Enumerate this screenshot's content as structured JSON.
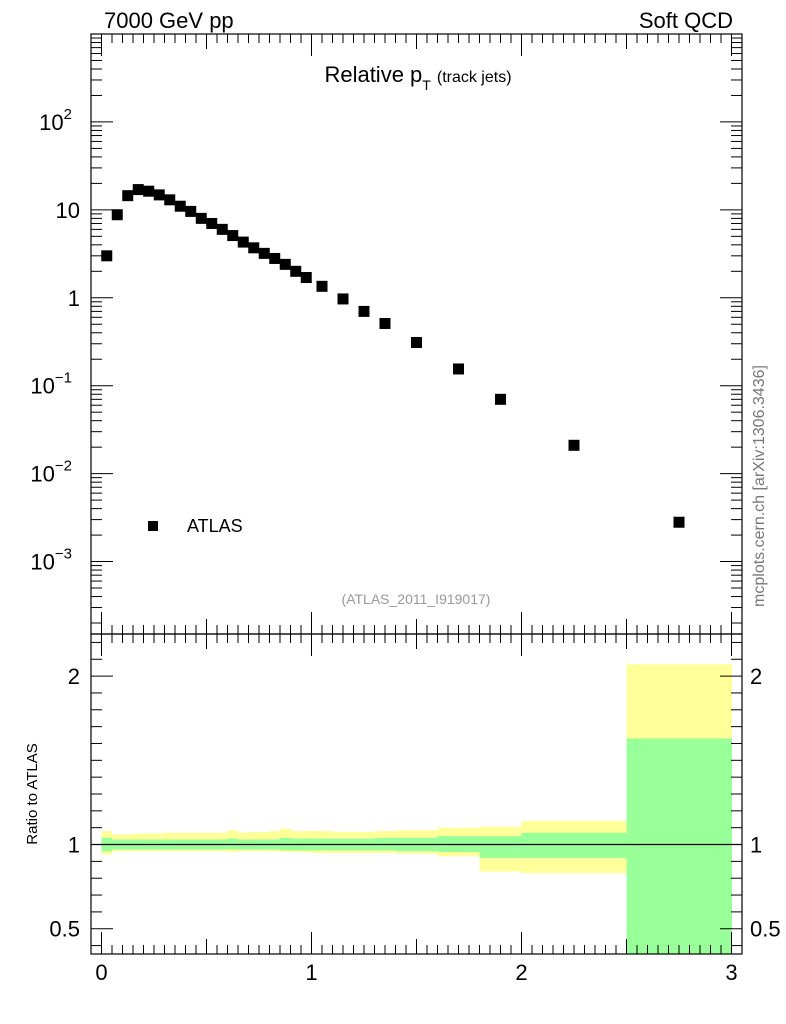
{
  "header": {
    "left": "7000 GeV pp",
    "right": "Soft QCD"
  },
  "side_label": "mcplots.cern.ch [arXiv:1306.3436]",
  "chart_data": [
    {
      "type": "scatter",
      "title_main": "Relative p",
      "title_sub": "T",
      "title_suffix": "(track jets)",
      "analysis_label": "(ATLAS_2011_I919017)",
      "xlim": [
        -0.05,
        3.05
      ],
      "ylim": [
        0.00015,
        1000
      ],
      "log_y": true,
      "y_tick_labels": [
        {
          "value": 100,
          "base": "10",
          "exp": "2"
        },
        {
          "value": 10,
          "base": "10",
          "exp": ""
        },
        {
          "value": 1,
          "base": "1",
          "exp": ""
        },
        {
          "value": 0.1,
          "base": "10",
          "exp": "−1"
        },
        {
          "value": 0.01,
          "base": "10",
          "exp": "−2"
        },
        {
          "value": 0.001,
          "base": "10",
          "exp": "−3"
        }
      ],
      "legend": {
        "label": "ATLAS",
        "position": "lower-left"
      },
      "series": [
        {
          "name": "ATLAS",
          "color": "#000000",
          "x": [
            0.025,
            0.075,
            0.125,
            0.175,
            0.225,
            0.275,
            0.325,
            0.375,
            0.425,
            0.475,
            0.525,
            0.575,
            0.625,
            0.675,
            0.725,
            0.775,
            0.825,
            0.875,
            0.925,
            0.975,
            1.05,
            1.15,
            1.25,
            1.35,
            1.5,
            1.7,
            1.9,
            2.25,
            2.75
          ],
          "y": [
            3.0,
            8.8,
            14.5,
            17.0,
            16.3,
            14.8,
            13.0,
            11.0,
            9.6,
            8.0,
            7.0,
            6.0,
            5.1,
            4.3,
            3.7,
            3.2,
            2.8,
            2.4,
            2.0,
            1.7,
            1.35,
            0.97,
            0.7,
            0.51,
            0.31,
            0.155,
            0.07,
            0.021,
            0.0028
          ]
        }
      ]
    },
    {
      "type": "area",
      "ylabel": "Ratio to ATLAS",
      "xlim": [
        -0.05,
        3.05
      ],
      "ylim": [
        0.35,
        2.25
      ],
      "x_ticks": [
        0,
        1,
        2,
        3
      ],
      "y_ticks": [
        0.5,
        1,
        2
      ],
      "reference_line": 1,
      "band_colors": {
        "inner": "#99ff99",
        "outer": "#ffff99"
      },
      "bins": [
        {
          "lo": 0.0,
          "hi": 0.05,
          "inner": [
            0.96,
            1.04
          ],
          "outer": [
            0.94,
            1.08
          ]
        },
        {
          "lo": 0.05,
          "hi": 0.1,
          "inner": [
            0.97,
            1.03
          ],
          "outer": [
            0.96,
            1.06
          ]
        },
        {
          "lo": 0.1,
          "hi": 0.15,
          "inner": [
            0.97,
            1.03
          ],
          "outer": [
            0.96,
            1.06
          ]
        },
        {
          "lo": 0.15,
          "hi": 0.2,
          "inner": [
            0.97,
            1.03
          ],
          "outer": [
            0.96,
            1.065
          ]
        },
        {
          "lo": 0.2,
          "hi": 0.25,
          "inner": [
            0.97,
            1.03
          ],
          "outer": [
            0.96,
            1.065
          ]
        },
        {
          "lo": 0.25,
          "hi": 0.3,
          "inner": [
            0.97,
            1.03
          ],
          "outer": [
            0.96,
            1.065
          ]
        },
        {
          "lo": 0.3,
          "hi": 0.35,
          "inner": [
            0.97,
            1.03
          ],
          "outer": [
            0.96,
            1.07
          ]
        },
        {
          "lo": 0.35,
          "hi": 0.4,
          "inner": [
            0.97,
            1.03
          ],
          "outer": [
            0.96,
            1.07
          ]
        },
        {
          "lo": 0.4,
          "hi": 0.45,
          "inner": [
            0.97,
            1.03
          ],
          "outer": [
            0.96,
            1.07
          ]
        },
        {
          "lo": 0.45,
          "hi": 0.5,
          "inner": [
            0.97,
            1.03
          ],
          "outer": [
            0.96,
            1.07
          ]
        },
        {
          "lo": 0.5,
          "hi": 0.55,
          "inner": [
            0.97,
            1.03
          ],
          "outer": [
            0.96,
            1.07
          ]
        },
        {
          "lo": 0.55,
          "hi": 0.6,
          "inner": [
            0.97,
            1.03
          ],
          "outer": [
            0.96,
            1.07
          ]
        },
        {
          "lo": 0.6,
          "hi": 0.65,
          "inner": [
            0.97,
            1.035
          ],
          "outer": [
            0.955,
            1.085
          ]
        },
        {
          "lo": 0.65,
          "hi": 0.7,
          "inner": [
            0.97,
            1.03
          ],
          "outer": [
            0.96,
            1.07
          ]
        },
        {
          "lo": 0.7,
          "hi": 0.75,
          "inner": [
            0.97,
            1.03
          ],
          "outer": [
            0.96,
            1.075
          ]
        },
        {
          "lo": 0.75,
          "hi": 0.8,
          "inner": [
            0.97,
            1.03
          ],
          "outer": [
            0.96,
            1.075
          ]
        },
        {
          "lo": 0.8,
          "hi": 0.85,
          "inner": [
            0.97,
            1.03
          ],
          "outer": [
            0.96,
            1.08
          ]
        },
        {
          "lo": 0.85,
          "hi": 0.9,
          "inner": [
            0.965,
            1.04
          ],
          "outer": [
            0.955,
            1.095
          ]
        },
        {
          "lo": 0.9,
          "hi": 0.95,
          "inner": [
            0.965,
            1.035
          ],
          "outer": [
            0.955,
            1.08
          ]
        },
        {
          "lo": 0.95,
          "hi": 1.0,
          "inner": [
            0.965,
            1.035
          ],
          "outer": [
            0.955,
            1.08
          ]
        },
        {
          "lo": 1.0,
          "hi": 1.1,
          "inner": [
            0.965,
            1.035
          ],
          "outer": [
            0.95,
            1.08
          ]
        },
        {
          "lo": 1.1,
          "hi": 1.2,
          "inner": [
            0.965,
            1.035
          ],
          "outer": [
            0.95,
            1.075
          ]
        },
        {
          "lo": 1.2,
          "hi": 1.3,
          "inner": [
            0.965,
            1.035
          ],
          "outer": [
            0.95,
            1.075
          ]
        },
        {
          "lo": 1.3,
          "hi": 1.4,
          "inner": [
            0.965,
            1.04
          ],
          "outer": [
            0.95,
            1.08
          ]
        },
        {
          "lo": 1.4,
          "hi": 1.6,
          "inner": [
            0.96,
            1.04
          ],
          "outer": [
            0.945,
            1.085
          ]
        },
        {
          "lo": 1.6,
          "hi": 1.8,
          "inner": [
            0.955,
            1.05
          ],
          "outer": [
            0.93,
            1.1
          ]
        },
        {
          "lo": 1.8,
          "hi": 2.0,
          "inner": [
            0.92,
            1.05
          ],
          "outer": [
            0.84,
            1.105
          ]
        },
        {
          "lo": 2.0,
          "hi": 2.5,
          "inner": [
            0.92,
            1.07
          ],
          "outer": [
            0.83,
            1.14
          ]
        },
        {
          "lo": 2.5,
          "hi": 3.0,
          "inner": [
            0.35,
            1.63
          ],
          "outer": [
            0.35,
            2.07
          ]
        }
      ]
    }
  ]
}
